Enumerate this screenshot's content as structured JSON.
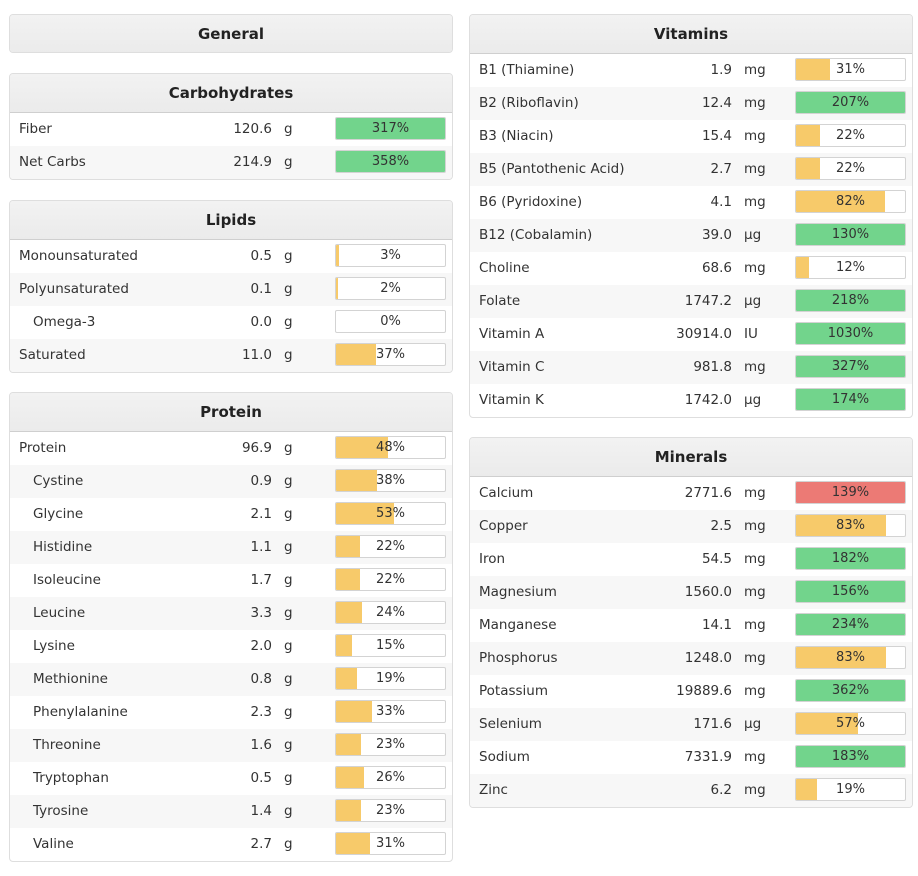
{
  "colors": {
    "green": "#72d48c",
    "yellow": "#f7ca6a",
    "red": "#ec7a75"
  },
  "general": {
    "title": "General"
  },
  "carbohydrates": {
    "title": "Carbohydrates",
    "rows": [
      {
        "name": "Fiber",
        "amount": "120.6",
        "unit": "g",
        "pct": "317%",
        "level": 1,
        "color": "green"
      },
      {
        "name": "Net Carbs",
        "amount": "214.9",
        "unit": "g",
        "pct": "358%",
        "level": 1,
        "color": "green"
      }
    ]
  },
  "lipids": {
    "title": "Lipids",
    "rows": [
      {
        "name": "Monounsaturated",
        "amount": "0.5",
        "unit": "g",
        "pct": "3%",
        "level": 0.03,
        "color": "yellow"
      },
      {
        "name": "Polyunsaturated",
        "amount": "0.1",
        "unit": "g",
        "pct": "2%",
        "level": 0.02,
        "color": "yellow"
      },
      {
        "name": "Omega-3",
        "amount": "0.0",
        "unit": "g",
        "pct": "0%",
        "level": 0,
        "color": "yellow",
        "indent": true
      },
      {
        "name": "Saturated",
        "amount": "11.0",
        "unit": "g",
        "pct": "37%",
        "level": 0.37,
        "color": "yellow"
      }
    ]
  },
  "protein": {
    "title": "Protein",
    "rows": [
      {
        "name": "Protein",
        "amount": "96.9",
        "unit": "g",
        "pct": "48%",
        "level": 0.48,
        "color": "yellow"
      },
      {
        "name": "Cystine",
        "amount": "0.9",
        "unit": "g",
        "pct": "38%",
        "level": 0.38,
        "color": "yellow",
        "indent": true
      },
      {
        "name": "Glycine",
        "amount": "2.1",
        "unit": "g",
        "pct": "53%",
        "level": 0.53,
        "color": "yellow",
        "indent": true
      },
      {
        "name": "Histidine",
        "amount": "1.1",
        "unit": "g",
        "pct": "22%",
        "level": 0.22,
        "color": "yellow",
        "indent": true
      },
      {
        "name": "Isoleucine",
        "amount": "1.7",
        "unit": "g",
        "pct": "22%",
        "level": 0.22,
        "color": "yellow",
        "indent": true
      },
      {
        "name": "Leucine",
        "amount": "3.3",
        "unit": "g",
        "pct": "24%",
        "level": 0.24,
        "color": "yellow",
        "indent": true
      },
      {
        "name": "Lysine",
        "amount": "2.0",
        "unit": "g",
        "pct": "15%",
        "level": 0.15,
        "color": "yellow",
        "indent": true
      },
      {
        "name": "Methionine",
        "amount": "0.8",
        "unit": "g",
        "pct": "19%",
        "level": 0.19,
        "color": "yellow",
        "indent": true
      },
      {
        "name": "Phenylalanine",
        "amount": "2.3",
        "unit": "g",
        "pct": "33%",
        "level": 0.33,
        "color": "yellow",
        "indent": true
      },
      {
        "name": "Threonine",
        "amount": "1.6",
        "unit": "g",
        "pct": "23%",
        "level": 0.23,
        "color": "yellow",
        "indent": true
      },
      {
        "name": "Tryptophan",
        "amount": "0.5",
        "unit": "g",
        "pct": "26%",
        "level": 0.26,
        "color": "yellow",
        "indent": true
      },
      {
        "name": "Tyrosine",
        "amount": "1.4",
        "unit": "g",
        "pct": "23%",
        "level": 0.23,
        "color": "yellow",
        "indent": true
      },
      {
        "name": "Valine",
        "amount": "2.7",
        "unit": "g",
        "pct": "31%",
        "level": 0.31,
        "color": "yellow",
        "indent": true
      }
    ]
  },
  "vitamins": {
    "title": "Vitamins",
    "rows": [
      {
        "name": "B1 (Thiamine)",
        "amount": "1.9",
        "unit": "mg",
        "pct": "31%",
        "level": 0.31,
        "color": "yellow"
      },
      {
        "name": "B2 (Riboflavin)",
        "amount": "12.4",
        "unit": "mg",
        "pct": "207%",
        "level": 1,
        "color": "green"
      },
      {
        "name": "B3 (Niacin)",
        "amount": "15.4",
        "unit": "mg",
        "pct": "22%",
        "level": 0.22,
        "color": "yellow"
      },
      {
        "name": "B5 (Pantothenic Acid)",
        "amount": "2.7",
        "unit": "mg",
        "pct": "22%",
        "level": 0.22,
        "color": "yellow"
      },
      {
        "name": "B6 (Pyridoxine)",
        "amount": "4.1",
        "unit": "mg",
        "pct": "82%",
        "level": 0.82,
        "color": "yellow"
      },
      {
        "name": "B12 (Cobalamin)",
        "amount": "39.0",
        "unit": "µg",
        "pct": "130%",
        "level": 1,
        "color": "green"
      },
      {
        "name": "Choline",
        "amount": "68.6",
        "unit": "mg",
        "pct": "12%",
        "level": 0.12,
        "color": "yellow"
      },
      {
        "name": "Folate",
        "amount": "1747.2",
        "unit": "µg",
        "pct": "218%",
        "level": 1,
        "color": "green"
      },
      {
        "name": "Vitamin A",
        "amount": "30914.0",
        "unit": "IU",
        "pct": "1030%",
        "level": 1,
        "color": "green"
      },
      {
        "name": "Vitamin C",
        "amount": "981.8",
        "unit": "mg",
        "pct": "327%",
        "level": 1,
        "color": "green"
      },
      {
        "name": "Vitamin K",
        "amount": "1742.0",
        "unit": "µg",
        "pct": "174%",
        "level": 1,
        "color": "green"
      }
    ]
  },
  "minerals": {
    "title": "Minerals",
    "rows": [
      {
        "name": "Calcium",
        "amount": "2771.6",
        "unit": "mg",
        "pct": "139%",
        "level": 1,
        "color": "red"
      },
      {
        "name": "Copper",
        "amount": "2.5",
        "unit": "mg",
        "pct": "83%",
        "level": 0.83,
        "color": "yellow"
      },
      {
        "name": "Iron",
        "amount": "54.5",
        "unit": "mg",
        "pct": "182%",
        "level": 1,
        "color": "green"
      },
      {
        "name": "Magnesium",
        "amount": "1560.0",
        "unit": "mg",
        "pct": "156%",
        "level": 1,
        "color": "green"
      },
      {
        "name": "Manganese",
        "amount": "14.1",
        "unit": "mg",
        "pct": "234%",
        "level": 1,
        "color": "green"
      },
      {
        "name": "Phosphorus",
        "amount": "1248.0",
        "unit": "mg",
        "pct": "83%",
        "level": 0.83,
        "color": "yellow"
      },
      {
        "name": "Potassium",
        "amount": "19889.6",
        "unit": "mg",
        "pct": "362%",
        "level": 1,
        "color": "green"
      },
      {
        "name": "Selenium",
        "amount": "171.6",
        "unit": "µg",
        "pct": "57%",
        "level": 0.57,
        "color": "yellow"
      },
      {
        "name": "Sodium",
        "amount": "7331.9",
        "unit": "mg",
        "pct": "183%",
        "level": 1,
        "color": "green"
      },
      {
        "name": "Zinc",
        "amount": "6.2",
        "unit": "mg",
        "pct": "19%",
        "level": 0.19,
        "color": "yellow"
      }
    ]
  }
}
